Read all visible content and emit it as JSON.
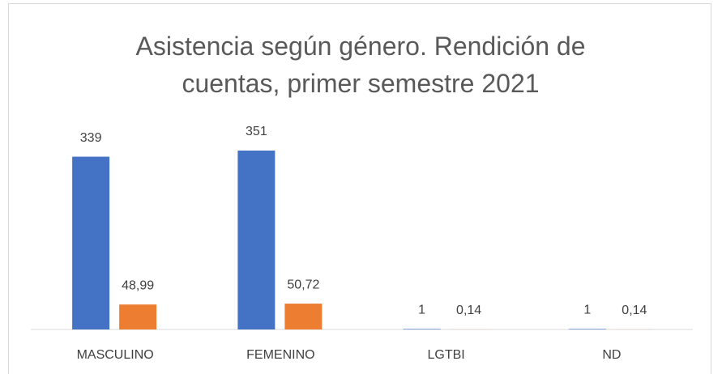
{
  "chart_data": {
    "type": "bar",
    "title": "Asistencia según género. Rendición de cuentas, primer semestre 2021",
    "categories": [
      "MASCULINO",
      "FEMENINO",
      "LGTBI",
      "ND"
    ],
    "series": [
      {
        "color": "#4472c4",
        "values": [
          339,
          351,
          1,
          1
        ]
      },
      {
        "color": "#ed7d31",
        "values": [
          48.99,
          50.72,
          0.14,
          0.14
        ],
        "value_labels": [
          "48,99",
          "50,72",
          "0,14",
          "0,14"
        ]
      }
    ]
  }
}
